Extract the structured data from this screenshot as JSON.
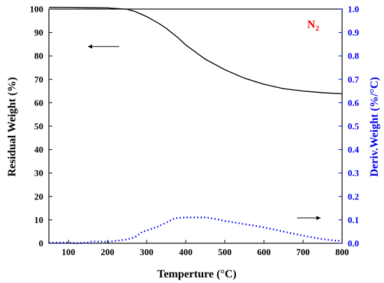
{
  "chart_data": {
    "type": "line",
    "xlabel": "Temperture (°C)",
    "ylabel_left": "Residual Weight (%)",
    "ylabel_right": "Deriv.Weight (%/°C)",
    "annotation": {
      "main": "N",
      "sub": "2"
    },
    "xlim": [
      50,
      800
    ],
    "ylim_left": [
      0,
      100
    ],
    "ylim_right": [
      0.0,
      1.0
    ],
    "x_ticks": [
      "100",
      "200",
      "300",
      "400",
      "500",
      "600",
      "700",
      "800"
    ],
    "y_ticks_left": [
      "0",
      "10",
      "20",
      "30",
      "40",
      "50",
      "60",
      "70",
      "80",
      "90",
      "100"
    ],
    "y_ticks_right": [
      "0.0",
      "0.1",
      "0.2",
      "0.3",
      "0.4",
      "0.5",
      "0.6",
      "0.7",
      "0.8",
      "0.9",
      "1.0"
    ],
    "grid": false,
    "series": [
      {
        "axis": "left",
        "style": "solid",
        "color": "#000000",
        "x": [
          50,
          100,
          150,
          200,
          250,
          270,
          300,
          330,
          350,
          380,
          400,
          450,
          500,
          550,
          600,
          650,
          700,
          750,
          800
        ],
        "y": [
          100.7,
          100.7,
          100.6,
          100.5,
          99.9,
          99.0,
          96.8,
          94.0,
          91.8,
          87.8,
          84.7,
          78.6,
          74.1,
          70.5,
          67.9,
          66.0,
          65.0,
          64.3,
          63.8
        ]
      },
      {
        "axis": "right",
        "style": "dotted",
        "color": "#0000ee",
        "x": [
          50,
          100,
          120,
          150,
          160,
          200,
          220,
          250,
          270,
          290,
          300,
          330,
          350,
          370,
          380,
          400,
          450,
          480,
          500,
          550,
          600,
          650,
          700,
          750,
          780,
          800
        ],
        "y": [
          0.002,
          0.003,
          0.0,
          0.003,
          0.008,
          0.006,
          0.01,
          0.016,
          0.026,
          0.05,
          0.054,
          0.072,
          0.088,
          0.105,
          0.108,
          0.11,
          0.11,
          0.103,
          0.095,
          0.082,
          0.068,
          0.05,
          0.032,
          0.018,
          0.012,
          0.01
        ]
      }
    ],
    "arrows": [
      {
        "axis": "left",
        "x_from": 230,
        "x_to": 150,
        "y": 84
      },
      {
        "axis": "right",
        "x_from": 685,
        "x_to": 745,
        "y": 0.108
      }
    ]
  }
}
